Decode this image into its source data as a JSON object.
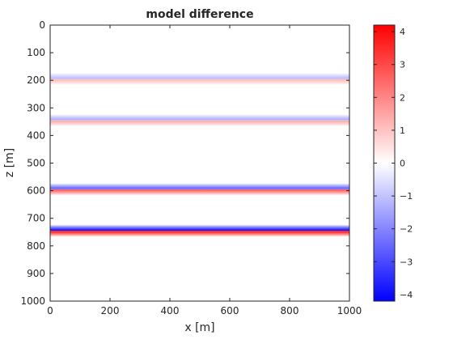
{
  "chart_data": {
    "type": "heatmap",
    "title": "model difference",
    "xlabel": "x [m]",
    "ylabel": "z [m]",
    "xlim": [
      0,
      1000
    ],
    "zlim": [
      0,
      1000
    ],
    "x_ticks": [
      0,
      200,
      400,
      600,
      800,
      1000
    ],
    "z_ticks": [
      0,
      100,
      200,
      300,
      400,
      500,
      600,
      700,
      800,
      900,
      1000
    ],
    "colorbar": {
      "range": [
        -4.2,
        4.2
      ],
      "ticks": [
        4,
        3,
        2,
        1,
        0,
        -1,
        -2,
        -3,
        -4
      ],
      "colormap": "blue-white-red",
      "low_color": "#0000ff",
      "mid_color": "#ffffff",
      "high_color": "#ff0000"
    },
    "interfaces": [
      {
        "depth": 195,
        "amplitude": 1.2
      },
      {
        "depth": 345,
        "amplitude": 1.5
      },
      {
        "depth": 595,
        "amplitude": 2.9
      },
      {
        "depth": 745,
        "amplitude": 4.2
      }
    ],
    "interface_halfwidth": 22,
    "grid": false
  }
}
